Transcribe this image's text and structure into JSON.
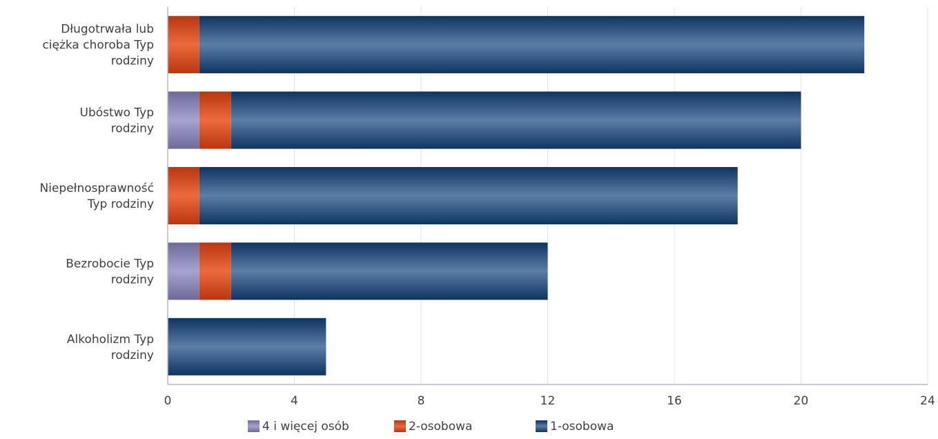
{
  "chart_data": {
    "type": "bar",
    "orientation": "horizontal",
    "stacked": true,
    "categories": [
      [
        "Długotrwała lub",
        "ciężka choroba Typ",
        "rodziny"
      ],
      [
        "Ubóstwo Typ",
        "rodziny"
      ],
      [
        "Niepełnosprawność",
        "Typ rodziny"
      ],
      [
        "Bezrobocie Typ",
        "rodziny"
      ],
      [
        "Alkoholizm Typ",
        "rodziny"
      ]
    ],
    "series": [
      {
        "name": "4  i więcej osób",
        "color": "#8a86b8",
        "values": [
          0,
          1,
          0,
          1,
          0
        ]
      },
      {
        "name": "2-osobowa",
        "color": "#d6451b",
        "values": [
          1,
          1,
          1,
          1,
          0
        ]
      },
      {
        "name": "1-osobowa",
        "color": "#1c4473",
        "values": [
          21,
          18,
          17,
          10,
          5
        ]
      }
    ],
    "xlim": [
      0,
      24
    ],
    "xticks": [
      "0",
      "4",
      "8",
      "12",
      "16",
      "20",
      "24"
    ],
    "grid": true,
    "legend_position": "bottom"
  }
}
